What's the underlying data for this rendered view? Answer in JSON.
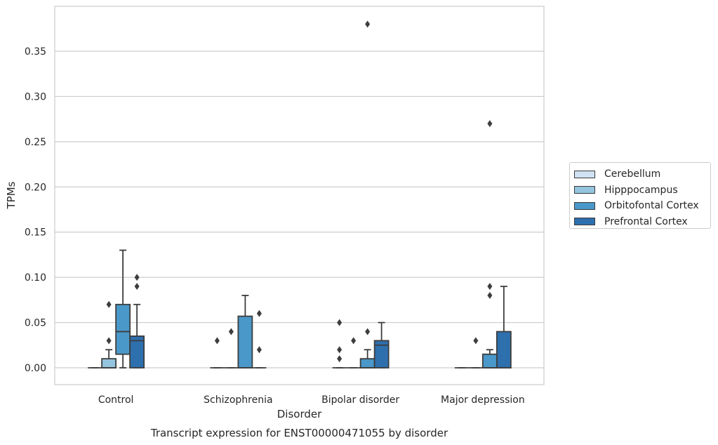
{
  "chart_data": {
    "type": "box",
    "caption": "Transcript expression for ENST00000471055 by disorder",
    "xlabel": "Disorder",
    "ylabel": "TPMs",
    "ylim": [
      -0.018,
      0.39
    ],
    "yticks": [
      "0.00",
      "0.05",
      "0.10",
      "0.15",
      "0.20",
      "0.25",
      "0.30",
      "0.35"
    ],
    "ytick_values": [
      0,
      0.05,
      0.1,
      0.15,
      0.2,
      0.25,
      0.3,
      0.35
    ],
    "grid": "horizontal",
    "legend_position": "right",
    "categories": [
      "Control",
      "Schizophrenia",
      "Bipolar disorder",
      "Major depression"
    ],
    "series": [
      {
        "name": "Cerebellum",
        "color": "#d0e1f2",
        "boxes": [
          {
            "q1": 0,
            "median": 0,
            "q3": 0,
            "whisker_low": 0,
            "whisker_high": 0,
            "outliers": []
          },
          {
            "q1": 0,
            "median": 0,
            "q3": 0,
            "whisker_low": 0,
            "whisker_high": 0,
            "outliers": [
              0.03
            ]
          },
          {
            "q1": 0,
            "median": 0,
            "q3": 0,
            "whisker_low": 0,
            "whisker_high": 0,
            "outliers": [
              0.05,
              0.02,
              0.01
            ]
          },
          {
            "q1": 0,
            "median": 0,
            "q3": 0,
            "whisker_low": 0,
            "whisker_high": 0,
            "outliers": []
          }
        ]
      },
      {
        "name": "Hipppocampus",
        "color": "#94c4df",
        "boxes": [
          {
            "q1": 0,
            "median": 0,
            "q3": 0.01,
            "whisker_low": 0,
            "whisker_high": 0.02,
            "outliers": [
              0.07,
              0.03
            ]
          },
          {
            "q1": 0,
            "median": 0,
            "q3": 0,
            "whisker_low": 0,
            "whisker_high": 0,
            "outliers": [
              0.04
            ]
          },
          {
            "q1": 0,
            "median": 0,
            "q3": 0,
            "whisker_low": 0,
            "whisker_high": 0,
            "outliers": [
              0.03
            ]
          },
          {
            "q1": 0,
            "median": 0,
            "q3": 0,
            "whisker_low": 0,
            "whisker_high": 0,
            "outliers": [
              0.03
            ]
          }
        ]
      },
      {
        "name": "Orbitofontal Cortex",
        "color": "#4a98c9",
        "boxes": [
          {
            "q1": 0.015,
            "median": 0.04,
            "q3": 0.07,
            "whisker_low": 0,
            "whisker_high": 0.13,
            "outliers": []
          },
          {
            "q1": 0,
            "median": 0,
            "q3": 0.057,
            "whisker_low": 0,
            "whisker_high": 0.08,
            "outliers": []
          },
          {
            "q1": 0,
            "median": 0,
            "q3": 0.01,
            "whisker_low": 0,
            "whisker_high": 0.02,
            "outliers": [
              0.04,
              0.38
            ]
          },
          {
            "q1": 0,
            "median": 0,
            "q3": 0.015,
            "whisker_low": 0,
            "whisker_high": 0.02,
            "outliers": [
              0.09,
              0.08,
              0.27
            ]
          }
        ]
      },
      {
        "name": "Prefrontal Cortex",
        "color": "#2e6fae",
        "boxes": [
          {
            "q1": 0,
            "median": 0.03,
            "q3": 0.035,
            "whisker_low": 0,
            "whisker_high": 0.07,
            "outliers": [
              0.1,
              0.09
            ]
          },
          {
            "q1": 0,
            "median": 0,
            "q3": 0,
            "whisker_low": 0,
            "whisker_high": 0,
            "outliers": [
              0.06,
              0.02
            ]
          },
          {
            "q1": 0,
            "median": 0.025,
            "q3": 0.03,
            "whisker_low": 0,
            "whisker_high": 0.05,
            "outliers": []
          },
          {
            "q1": 0,
            "median": 0,
            "q3": 0.04,
            "whisker_low": 0,
            "whisker_high": 0.09,
            "outliers": []
          }
        ]
      }
    ]
  }
}
